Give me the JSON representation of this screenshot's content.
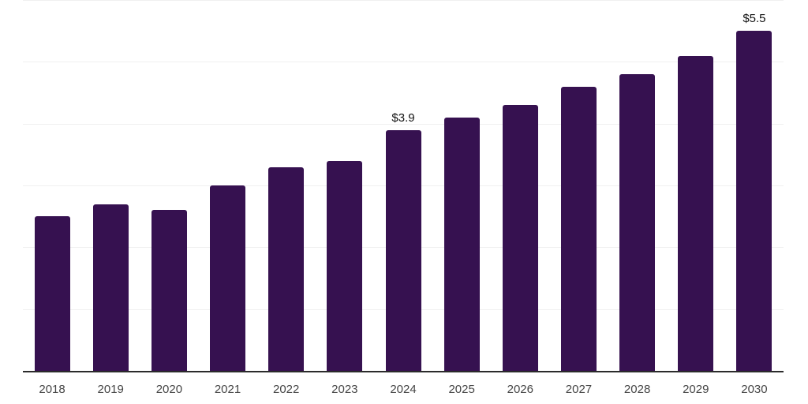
{
  "chart_data": {
    "type": "bar",
    "title": "",
    "xlabel": "",
    "ylabel": "",
    "categories": [
      "2018",
      "2019",
      "2020",
      "2021",
      "2022",
      "2023",
      "2024",
      "2025",
      "2026",
      "2027",
      "2028",
      "2029",
      "2030"
    ],
    "values": [
      2.5,
      2.7,
      2.6,
      3.0,
      3.3,
      3.4,
      3.9,
      4.1,
      4.3,
      4.6,
      4.8,
      5.1,
      5.5
    ],
    "point_labels": [
      "",
      "",
      "",
      "",
      "",
      "",
      "$3.9",
      "",
      "",
      "",
      "",
      "",
      "$5.5"
    ],
    "ylim": [
      0,
      6
    ],
    "gridline_step": 1,
    "grid": true,
    "legend": false,
    "y_tick_labels_visible": false
  },
  "colors": {
    "bar": "#361150",
    "gridline": "#f0f0f0",
    "axis_line": "#2b2b2b",
    "tick_label": "#454545",
    "data_label": "#111111",
    "background": "#ffffff"
  }
}
